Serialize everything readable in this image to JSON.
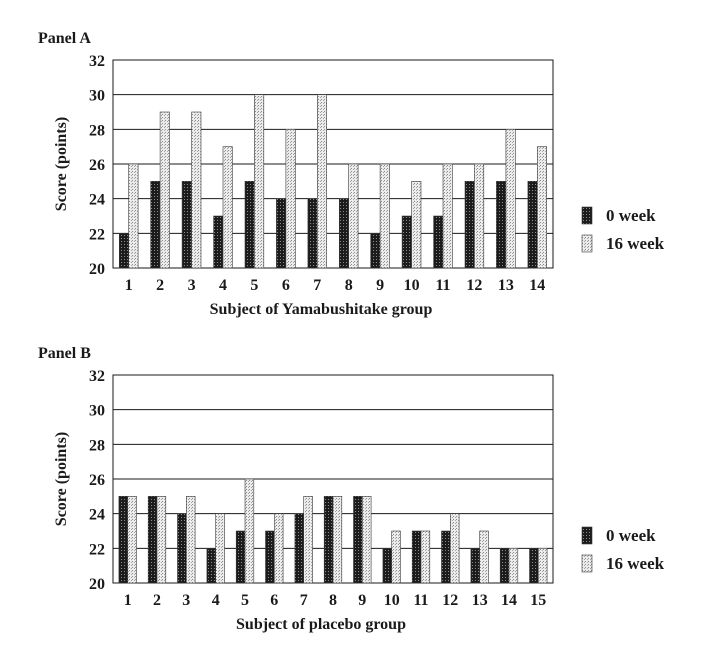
{
  "colors": {
    "week0": "#2a2a2a",
    "week16": "#d6d6d6",
    "grid": "#1a1a1a"
  },
  "chart_data": [
    {
      "type": "bar",
      "panel_label": "Panel  A",
      "xlabel": "Subject of Yamabushitake group",
      "ylabel": "Score (points)",
      "ylim": [
        20,
        32
      ],
      "yticks": [
        "20",
        "22",
        "24",
        "26",
        "28",
        "30",
        "32"
      ],
      "grid": true,
      "legend_position": "right",
      "categories": [
        "1",
        "2",
        "3",
        "4",
        "5",
        "6",
        "7",
        "8",
        "9",
        "10",
        "11",
        "12",
        "13",
        "14"
      ],
      "series": [
        {
          "name": "0 week",
          "values": [
            22,
            25,
            25,
            23,
            25,
            24,
            24,
            24,
            22,
            23,
            23,
            25,
            25,
            25
          ]
        },
        {
          "name": "16 week",
          "values": [
            26,
            29,
            29,
            27,
            30,
            28,
            30,
            26,
            26,
            25,
            26,
            26,
            28,
            27
          ]
        }
      ]
    },
    {
      "type": "bar",
      "panel_label": "Panel B",
      "xlabel": "Subject of placebo group",
      "ylabel": "Score (points)",
      "ylim": [
        20,
        32
      ],
      "yticks": [
        "20",
        "22",
        "24",
        "26",
        "28",
        "30",
        "32"
      ],
      "grid": true,
      "legend_position": "right",
      "categories": [
        "1",
        "2",
        "3",
        "4",
        "5",
        "6",
        "7",
        "8",
        "9",
        "10",
        "11",
        "12",
        "13",
        "14",
        "15"
      ],
      "series": [
        {
          "name": "0 week",
          "values": [
            25,
            25,
            24,
            22,
            23,
            23,
            24,
            25,
            25,
            22,
            23,
            23,
            22,
            22,
            22
          ]
        },
        {
          "name": "16 week",
          "values": [
            25,
            25,
            25,
            24,
            26,
            24,
            25,
            25,
            25,
            23,
            23,
            24,
            23,
            22,
            22
          ]
        }
      ]
    }
  ]
}
